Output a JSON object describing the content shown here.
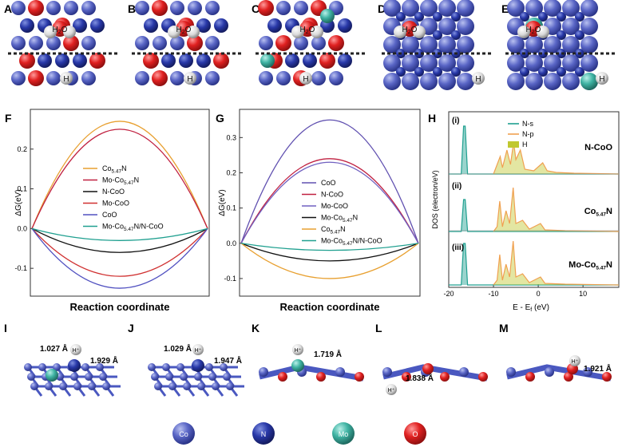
{
  "panels": {
    "top": [
      {
        "letter": "A",
        "water": "H2O",
        "h": "H"
      },
      {
        "letter": "B",
        "water": "H2O",
        "h": "H"
      },
      {
        "letter": "C",
        "water": "H2O",
        "h": "H"
      },
      {
        "letter": "D",
        "water": "H2O",
        "h": "H"
      },
      {
        "letter": "E",
        "water": "H2O",
        "h": "H"
      }
    ],
    "bottom": [
      {
        "letter": "I",
        "dists": [
          "1.027 Å",
          "1.929 Å"
        ]
      },
      {
        "letter": "J",
        "dists": [
          "1.029 Å",
          "1.947 Å"
        ]
      },
      {
        "letter": "K",
        "dists": [
          "1.719 Å"
        ]
      },
      {
        "letter": "L",
        "dists": [
          "1.838 Å"
        ]
      },
      {
        "letter": "M",
        "dists": [
          "1.921 Å"
        ]
      }
    ],
    "h_plus": "H⁺"
  },
  "atom_legend": [
    {
      "label": "Co",
      "color": "#5060c0"
    },
    {
      "label": "N",
      "color": "#2636a6"
    },
    {
      "label": "Mo",
      "color": "#3fb3a3"
    },
    {
      "label": "O",
      "color": "#e02020"
    }
  ],
  "chart_data": [
    {
      "type": "line",
      "letter": "F",
      "xlabel": "Reaction coordinate",
      "ylabel": "ΔG(eV)",
      "ylim": [
        -0.17,
        0.3
      ],
      "yticks": [
        -0.1,
        0.0,
        0.1,
        0.2
      ],
      "x": [
        0,
        0.5,
        1
      ],
      "series": [
        {
          "name": "Co5.47N",
          "peak": 0.27,
          "color": "#e8a030"
        },
        {
          "name": "Mo-Co5.47N",
          "peak": 0.25,
          "color": "#c02040"
        },
        {
          "name": "N-CoO",
          "peak": -0.06,
          "color": "#111111"
        },
        {
          "name": "Mo-CoO",
          "peak": -0.12,
          "color": "#d03030"
        },
        {
          "name": "CoO",
          "peak": -0.15,
          "color": "#5050c0"
        },
        {
          "name": "Mo-Co5.47N/N-CoO",
          "peak": -0.03,
          "color": "#20a090"
        }
      ]
    },
    {
      "type": "line",
      "letter": "G",
      "xlabel": "Reaction coordinate",
      "ylabel": "ΔG(eV)",
      "ylim": [
        -0.15,
        0.38
      ],
      "yticks": [
        -0.1,
        0.0,
        0.1,
        0.2,
        0.3
      ],
      "x": [
        0,
        0.5,
        1
      ],
      "series": [
        {
          "name": "CoO",
          "peak": 0.35,
          "color": "#6050b0"
        },
        {
          "name": "N-CoO",
          "peak": 0.24,
          "color": "#c02040"
        },
        {
          "name": "Mo-CoO",
          "peak": 0.23,
          "color": "#7060c0"
        },
        {
          "name": "Mo-Co5.47N",
          "peak": -0.05,
          "color": "#111111"
        },
        {
          "name": "Co5.47N",
          "peak": -0.1,
          "color": "#e8a030"
        },
        {
          "name": "Mo-Co5.47N/N-CoO",
          "peak": -0.02,
          "color": "#20a090"
        }
      ]
    },
    {
      "type": "area",
      "letter": "H",
      "xlabel": "E - Ef (eV)",
      "ylabel": "DOS (electron/eV)",
      "xlim": [
        -20,
        18
      ],
      "xticks": [
        -20,
        -10,
        0,
        10
      ],
      "legend": [
        {
          "name": "N-s",
          "color": "#20a090"
        },
        {
          "name": "N-p",
          "color": "#f0a050"
        },
        {
          "name": "H",
          "color": "#c0c830"
        }
      ],
      "subpanels": [
        {
          "tag": "(i)",
          "label": "N-CoO"
        },
        {
          "tag": "(ii)",
          "label": "Co5.47N"
        },
        {
          "tag": "(iii)",
          "label": "Mo-Co5.47N"
        }
      ]
    }
  ]
}
